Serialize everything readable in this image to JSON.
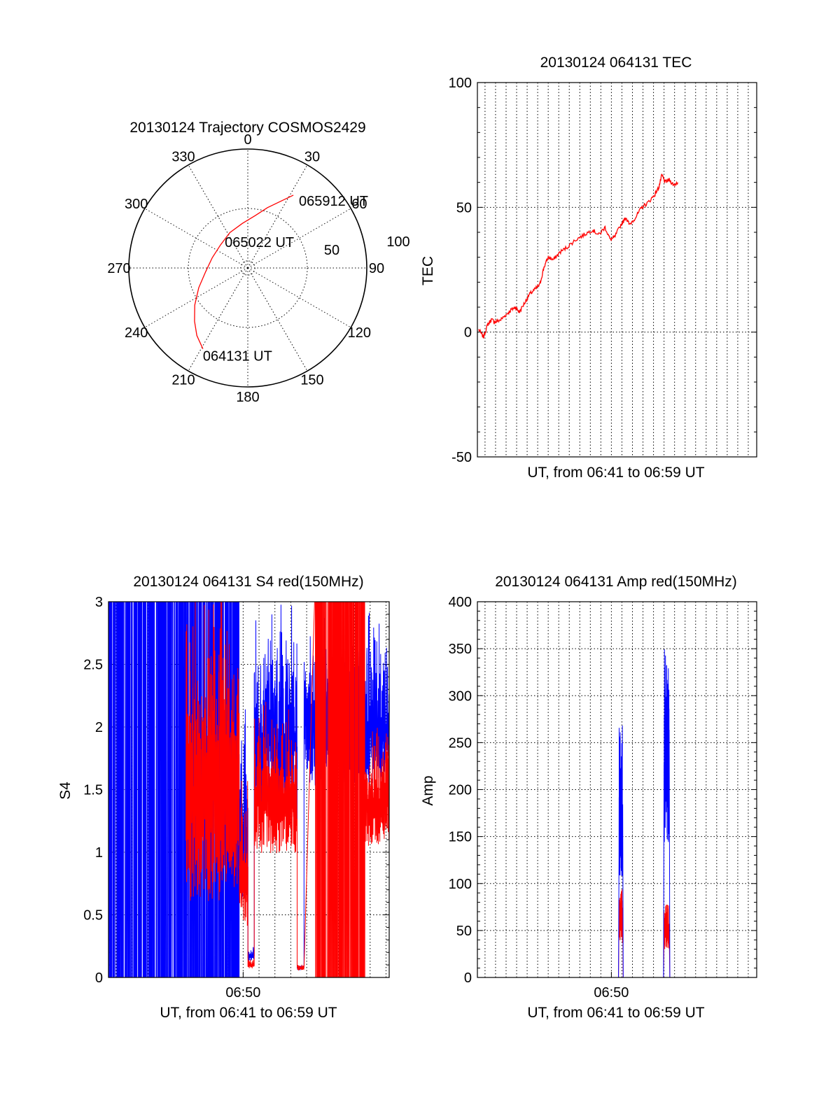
{
  "colors": {
    "red": "#ff0000",
    "blue": "#0000ff",
    "axis": "#000000"
  },
  "chart_data": [
    {
      "id": "trajectory",
      "type": "polar",
      "title": "20130124 Trajectory COSMOS2429",
      "azimuth_labels": [
        "0",
        "30",
        "60",
        "90",
        "120",
        "150",
        "180",
        "210",
        "240",
        "270",
        "300",
        "330"
      ],
      "radial_labels": [
        "50",
        "100"
      ],
      "grid": true,
      "series": [
        {
          "color": "red",
          "points": [
            {
              "az": 209,
              "el": 20
            },
            {
              "az": 217,
              "el": 26
            },
            {
              "az": 225,
              "el": 33
            },
            {
              "az": 235,
              "el": 41
            },
            {
              "az": 248,
              "el": 50
            },
            {
              "az": 265,
              "el": 58
            },
            {
              "az": 286,
              "el": 62
            },
            {
              "az": 310,
              "el": 63
            },
            {
              "az": 333,
              "el": 60
            },
            {
              "az": 353,
              "el": 56
            },
            {
              "az": 8,
              "el": 50
            },
            {
              "az": 18,
              "el": 42
            },
            {
              "az": 26,
              "el": 34
            },
            {
              "az": 32,
              "el": 25
            }
          ]
        }
      ],
      "annotations": [
        {
          "text": "064131 UT",
          "az": 209,
          "el": 20
        },
        {
          "text": "065022 UT",
          "az": 290,
          "el": 67
        },
        {
          "text": "065912 UT",
          "az": 32,
          "el": 25
        }
      ]
    },
    {
      "id": "tec",
      "type": "line",
      "title": "20130124 064131 TEC",
      "xlabel": "UT, from 06:41 to 06:59 UT",
      "ylabel": "TEC",
      "ylim": [
        -50,
        100
      ],
      "yticks": [
        -50,
        0,
        50,
        100
      ],
      "xlim": [
        "06:41:31",
        "06:59:12"
      ],
      "x_grid_minutes": [
        "06:42",
        "06:43",
        "06:44",
        "06:45",
        "06:46",
        "06:47",
        "06:48",
        "06:49",
        "06:50",
        "06:51",
        "06:52",
        "06:53",
        "06:54",
        "06:55",
        "06:56",
        "06:57",
        "06:58",
        "06:59"
      ],
      "grid": true,
      "series": [
        {
          "color": "red",
          "points": [
            [
              "06:41:36",
              1
            ],
            [
              "06:41:54",
              -2
            ],
            [
              "06:42:10",
              3
            ],
            [
              "06:42:24",
              5
            ],
            [
              "06:42:40",
              4
            ],
            [
              "06:43:00",
              5
            ],
            [
              "06:43:20",
              7
            ],
            [
              "06:43:40",
              9
            ],
            [
              "06:43:56",
              10
            ],
            [
              "06:44:10",
              8
            ],
            [
              "06:44:32",
              12
            ],
            [
              "06:44:48",
              15
            ],
            [
              "06:45:08",
              17
            ],
            [
              "06:45:28",
              19
            ],
            [
              "06:45:44",
              26
            ],
            [
              "06:46:00",
              30
            ],
            [
              "06:46:20",
              29
            ],
            [
              "06:46:44",
              32
            ],
            [
              "06:47:12",
              34
            ],
            [
              "06:47:44",
              37
            ],
            [
              "06:48:16",
              39
            ],
            [
              "06:48:48",
              41
            ],
            [
              "06:49:12",
              39
            ],
            [
              "06:49:36",
              42
            ],
            [
              "06:49:56",
              37
            ],
            [
              "06:50:12",
              38
            ],
            [
              "06:50:36",
              43
            ],
            [
              "06:50:56",
              46
            ],
            [
              "06:51:08",
              43
            ],
            [
              "06:51:32",
              46
            ],
            [
              "06:51:56",
              50
            ],
            [
              "06:52:20",
              52
            ],
            [
              "06:52:44",
              55
            ],
            [
              "06:53:00",
              58
            ],
            [
              "06:53:12",
              63
            ],
            [
              "06:53:24",
              60
            ],
            [
              "06:53:40",
              61
            ],
            [
              "06:53:56",
              59
            ],
            [
              "06:54:12",
              60
            ]
          ]
        }
      ]
    },
    {
      "id": "s4",
      "type": "line",
      "title": "20130124 064131 S4 red(150MHz)",
      "xlabel": "UT, from 06:41 to 06:59 UT",
      "ylabel": "S4",
      "ylim": [
        0,
        3
      ],
      "yticks": [
        0,
        0.5,
        1,
        1.5,
        2,
        2.5,
        3
      ],
      "ytick_labels": [
        "0",
        "0.5",
        "1",
        "1.5",
        "2",
        "2.5",
        "3"
      ],
      "xlim": [
        "06:41:31",
        "06:59:12"
      ],
      "xtick_labels": [
        {
          "at": "06:50:00",
          "label": "06:50"
        }
      ],
      "grid": true,
      "series": [
        {
          "color": "blue",
          "segments": [
            {
              "from": "06:41:31",
              "to": "06:49:45",
              "range": [
                0,
                3
              ],
              "dense": true
            },
            {
              "from": "06:49:45",
              "to": "06:50:18",
              "range": [
                0.1,
                2.2
              ]
            },
            {
              "from": "06:50:18",
              "to": "06:50:42",
              "range": [
                0.1,
                0.25
              ]
            },
            {
              "from": "06:50:42",
              "to": "06:53:24",
              "range": [
                0.9,
                2.9
              ]
            },
            {
              "from": "06:53:24",
              "to": "06:53:50",
              "range": [
                0.05,
                0.1
              ]
            },
            {
              "from": "06:53:50",
              "to": "06:59:12",
              "range": [
                1.2,
                2.8
              ]
            }
          ]
        },
        {
          "color": "red",
          "segments": [
            {
              "from": "06:46:24",
              "to": "06:49:45",
              "range": [
                0,
                3
              ]
            },
            {
              "from": "06:49:45",
              "to": "06:50:18",
              "range": [
                0.1,
                1.5
              ]
            },
            {
              "from": "06:50:18",
              "to": "06:50:42",
              "range": [
                0.05,
                0.15
              ]
            },
            {
              "from": "06:50:42",
              "to": "06:53:24",
              "range": [
                0.7,
                2.1
              ]
            },
            {
              "from": "06:53:24",
              "to": "06:53:50",
              "range": [
                0.05,
                0.1
              ]
            },
            {
              "from": "06:54:30",
              "to": "06:57:40",
              "range": [
                0,
                3
              ],
              "dense": true
            },
            {
              "from": "06:57:40",
              "to": "06:59:12",
              "range": [
                0.8,
                2.0
              ]
            }
          ]
        }
      ]
    },
    {
      "id": "amp",
      "type": "line",
      "title": "20130124 064131 Amp red(150MHz)",
      "xlabel": "UT, from 06:41 to 06:59 UT",
      "ylabel": "Amp",
      "ylim": [
        0,
        400
      ],
      "yticks": [
        0,
        50,
        100,
        150,
        200,
        250,
        300,
        350,
        400
      ],
      "xlim": [
        "06:41:31",
        "06:59:12"
      ],
      "xtick_labels": [
        {
          "at": "06:50:00",
          "label": "06:50"
        }
      ],
      "grid": true,
      "series": [
        {
          "color": "blue",
          "bursts": [
            {
              "from": "06:50:29",
              "to": "06:50:43",
              "peak": 275,
              "base": 0
            },
            {
              "from": "06:53:20",
              "to": "06:53:40",
              "peak": 350,
              "base": 0
            }
          ]
        },
        {
          "color": "red",
          "bursts": [
            {
              "from": "06:50:29",
              "to": "06:50:43",
              "peak": 95,
              "base": 0
            },
            {
              "from": "06:53:20",
              "to": "06:53:40",
              "peak": 78,
              "base": 0
            }
          ]
        }
      ]
    }
  ]
}
